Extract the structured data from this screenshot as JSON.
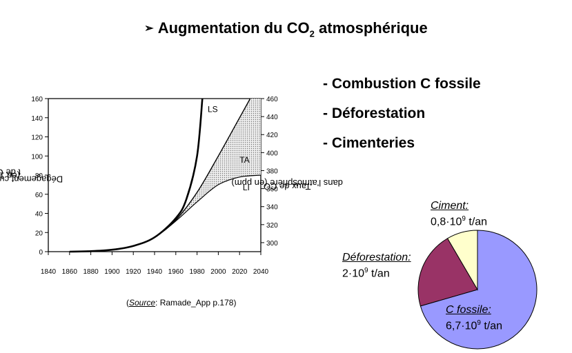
{
  "title": {
    "arrow": "➢",
    "text": "Augmentation du CO",
    "sub": "2",
    "suffix": " atmosphérique"
  },
  "bullets": [
    "- Combustion C fossile",
    "- Déforestation",
    "- Cimenteries"
  ],
  "source": {
    "open": "(",
    "word": "Source",
    "rest": ": Ramade_App p.178)"
  },
  "chart_data": [
    {
      "type": "line",
      "xlim": [
        1840,
        2040
      ],
      "ylim": [
        0,
        160
      ],
      "ylim_right": [
        290,
        460
      ],
      "x_ticks": [
        "1840",
        "1860",
        "1880",
        "1900",
        "1920",
        "1940",
        "1960",
        "1980",
        "2000",
        "2020",
        "2040"
      ],
      "y_ticks": [
        "0",
        "20",
        "40",
        "60",
        "80",
        "100",
        "120",
        "140",
        "160"
      ],
      "y_ticks_right": [
        "300",
        "320",
        "340",
        "360",
        "380",
        "400",
        "420",
        "440",
        "460"
      ],
      "ylabel": {
        "pre": "Dégagement cumulé de CO",
        "sub": "2",
        "mid": " (en 10",
        "sup": "9",
        "post": " t de C)"
      },
      "ylabel_right": {
        "pre": "Taux de CO",
        "sub": "2",
        "post": " dans l'atmosphère (en ppm)"
      },
      "grid": false,
      "series": [
        {
          "name": "LS",
          "x": [
            1860,
            1880,
            1900,
            1920,
            1940,
            1960,
            1970,
            1980,
            1985
          ],
          "y": [
            0,
            0.5,
            2,
            6,
            15,
            35,
            55,
            100,
            160
          ]
        },
        {
          "name": "TA",
          "x": [
            1860,
            1880,
            1900,
            1920,
            1940,
            1960,
            1980,
            2000,
            2020,
            2030
          ],
          "y": [
            0,
            0.5,
            2,
            6,
            15,
            33,
            62,
            100,
            140,
            160
          ]
        },
        {
          "name": "LI",
          "x": [
            1860,
            1880,
            1900,
            1920,
            1940,
            1960,
            1980,
            2000,
            2020,
            2040
          ],
          "y": [
            0,
            0.5,
            2,
            6,
            15,
            32,
            52,
            70,
            78,
            80
          ]
        }
      ],
      "shaded_region": "between TA and LI",
      "series_labels": [
        "LS",
        "TA",
        "LI"
      ]
    },
    {
      "type": "pie",
      "slices": [
        {
          "name": "C fossile:",
          "value": 6.7,
          "value_text": "6,7·10",
          "sup": "9",
          "unit": " t/an",
          "color": "#9999ff"
        },
        {
          "name": "Déforestation:",
          "value": 2.0,
          "value_text": "2·10",
          "sup": "9",
          "unit": " t/an",
          "color": "#993366"
        },
        {
          "name": "Ciment:",
          "value": 0.8,
          "value_text": "0,8·10",
          "sup": "9",
          "unit": " t/an",
          "color": "#ffffcc"
        }
      ]
    }
  ]
}
